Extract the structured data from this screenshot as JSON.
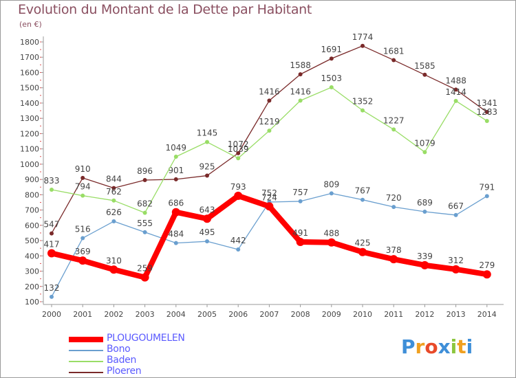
{
  "chart_data": {
    "type": "line",
    "title": "Evolution du Montant de la Dette par Habitant",
    "subtitle": "(en €)",
    "x": [
      "2000",
      "2001",
      "2002",
      "2003",
      "2004",
      "2005",
      "2006",
      "2007",
      "2008",
      "2009",
      "2010",
      "2011",
      "2012",
      "2013",
      "2014"
    ],
    "ylim": [
      100,
      1800
    ],
    "yticks": [
      100,
      200,
      300,
      400,
      500,
      600,
      700,
      800,
      900,
      1000,
      1100,
      1200,
      1300,
      1400,
      1500,
      1600,
      1700,
      1800
    ],
    "grid": false,
    "legend_position": "bottom-left",
    "series": [
      {
        "name": "PLOUGOUMELEN",
        "color": "#ff0000",
        "values": [
          417,
          369,
          310,
          259,
          686,
          643,
          793,
          724,
          491,
          488,
          425,
          378,
          339,
          312,
          279
        ],
        "labels": [
          "417",
          "369",
          "310",
          "259",
          "686",
          "643",
          "793",
          "724",
          "491",
          "488",
          "425",
          "378",
          "339",
          "312",
          "279"
        ]
      },
      {
        "name": "Bono",
        "color": "#6a9fcf",
        "values": [
          132,
          516,
          626,
          555,
          484,
          495,
          442,
          752,
          757,
          809,
          767,
          720,
          689,
          667,
          791
        ],
        "labels": [
          "132",
          "516",
          "626",
          "555",
          "484",
          "495",
          "442",
          "752",
          "757",
          "809",
          "767",
          "720",
          "689",
          "667",
          "791"
        ]
      },
      {
        "name": "Baden",
        "color": "#99dd66",
        "values": [
          833,
          794,
          762,
          682,
          1049,
          1145,
          1039,
          1219,
          1416,
          1503,
          1352,
          1227,
          1079,
          1414,
          1283
        ],
        "labels": [
          "833",
          "794",
          "762",
          "682",
          "1049",
          "1145",
          "1039",
          "1219",
          "1416",
          "1503",
          "1352",
          "1227",
          "1079",
          "1414",
          "1283"
        ]
      },
      {
        "name": "Ploeren",
        "color": "#7a2a2a",
        "values": [
          547,
          910,
          844,
          896,
          901,
          925,
          1072,
          1416,
          1588,
          1691,
          1774,
          1681,
          1585,
          1488,
          1341
        ],
        "labels": [
          "547",
          "910",
          "844",
          "896",
          "901",
          "925",
          "1072",
          "1416",
          "1588",
          "1691",
          "1774",
          "1681",
          "1585",
          "1488",
          "1341"
        ]
      }
    ]
  },
  "brand": {
    "letters": [
      "P",
      "r",
      "o",
      "x",
      "i",
      "t",
      "i"
    ],
    "colors": [
      "#3f8fd8",
      "#f0a020",
      "#e84a2a",
      "#3f8fd8",
      "#8cc63f",
      "#f0a020",
      "#3f8fd8"
    ]
  }
}
